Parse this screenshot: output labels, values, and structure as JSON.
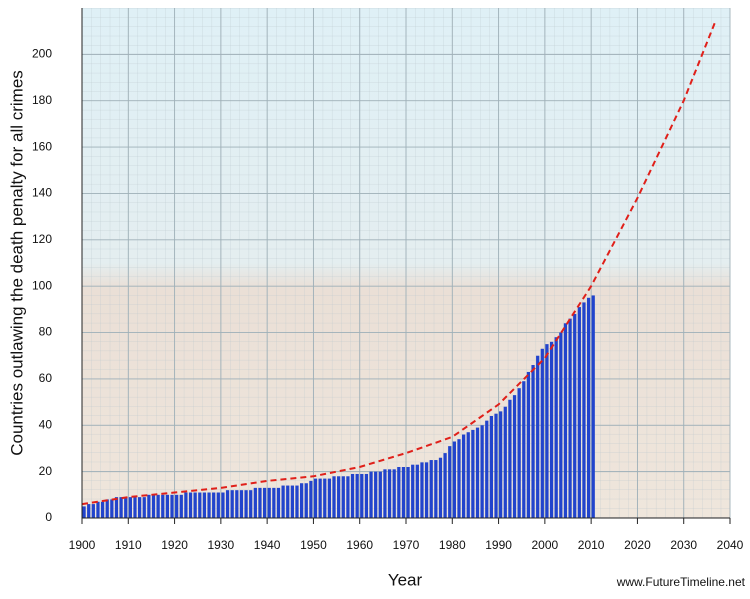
{
  "chart_data": {
    "type": "bar",
    "y_label": "Countries outlawing the death penalty for all crimes",
    "x_label": "Year",
    "credit": "www.FutureTimeline.net",
    "xlim": [
      1900,
      2040
    ],
    "xticks": [
      1900,
      1910,
      1920,
      1930,
      1940,
      1950,
      1960,
      1970,
      1980,
      1990,
      2000,
      2010,
      2020,
      2030,
      2040
    ],
    "ylim": [
      0,
      220
    ],
    "yticks": [
      0,
      20,
      40,
      60,
      80,
      100,
      120,
      140,
      160,
      180,
      200
    ],
    "grid": true,
    "bars": {
      "color": "#2244cc",
      "x": [
        1900,
        1901,
        1902,
        1903,
        1904,
        1905,
        1906,
        1907,
        1908,
        1909,
        1910,
        1911,
        1912,
        1913,
        1914,
        1915,
        1916,
        1917,
        1918,
        1919,
        1920,
        1921,
        1922,
        1923,
        1924,
        1925,
        1926,
        1927,
        1928,
        1929,
        1930,
        1931,
        1932,
        1933,
        1934,
        1935,
        1936,
        1937,
        1938,
        1939,
        1940,
        1941,
        1942,
        1943,
        1944,
        1945,
        1946,
        1947,
        1948,
        1949,
        1950,
        1951,
        1952,
        1953,
        1954,
        1955,
        1956,
        1957,
        1958,
        1959,
        1960,
        1961,
        1962,
        1963,
        1964,
        1965,
        1966,
        1967,
        1968,
        1969,
        1970,
        1971,
        1972,
        1973,
        1974,
        1975,
        1976,
        1977,
        1978,
        1979,
        1980,
        1981,
        1982,
        1983,
        1984,
        1985,
        1986,
        1987,
        1988,
        1989,
        1990,
        1991,
        1992,
        1993,
        1994,
        1995,
        1996,
        1997,
        1998,
        1999,
        2000,
        2001,
        2002,
        2003,
        2004,
        2005,
        2006,
        2007,
        2008,
        2009,
        2010
      ],
      "values": [
        5,
        6,
        6,
        7,
        7,
        8,
        8,
        9,
        9,
        9,
        9,
        9,
        9,
        9,
        10,
        10,
        10,
        10,
        10,
        10,
        10,
        10,
        11,
        11,
        11,
        11,
        11,
        11,
        11,
        11,
        11,
        12,
        12,
        12,
        12,
        12,
        12,
        13,
        13,
        13,
        13,
        13,
        13,
        14,
        14,
        14,
        14,
        15,
        15,
        16,
        17,
        17,
        17,
        17,
        18,
        18,
        18,
        18,
        19,
        19,
        19,
        19,
        20,
        20,
        20,
        21,
        21,
        21,
        22,
        22,
        22,
        23,
        23,
        24,
        24,
        25,
        25,
        26,
        28,
        31,
        33,
        34,
        36,
        37,
        38,
        39,
        40,
        42,
        44,
        45,
        46,
        48,
        51,
        53,
        56,
        59,
        63,
        66,
        70,
        73,
        75,
        76,
        78,
        80,
        84,
        86,
        88,
        91,
        93,
        95,
        96
      ]
    },
    "trend": {
      "color": "#e0201a",
      "x": [
        1900,
        1910,
        1920,
        1930,
        1940,
        1950,
        1960,
        1970,
        1980,
        1990,
        2000,
        2010,
        2020,
        2030,
        2037
      ],
      "values": [
        6,
        9,
        11,
        13,
        16,
        18,
        22,
        28,
        35,
        49,
        69,
        100,
        138,
        180,
        215
      ]
    }
  }
}
